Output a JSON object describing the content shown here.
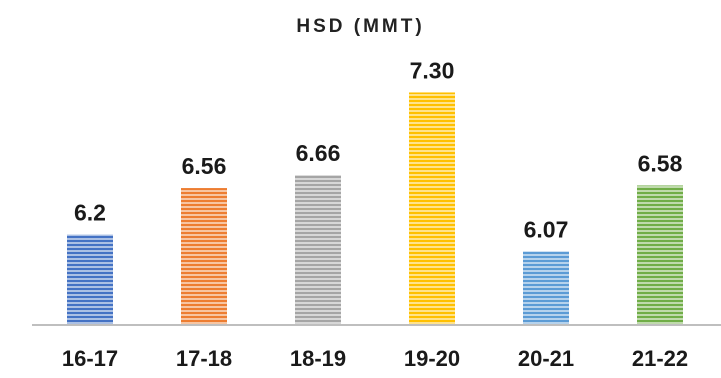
{
  "chart_data": {
    "type": "bar",
    "title": "HSD (MMT)",
    "categories": [
      "16-17",
      "17-18",
      "18-19",
      "19-20",
      "20-21",
      "21-22"
    ],
    "values": [
      6.2,
      6.56,
      6.66,
      7.3,
      6.07,
      6.58
    ],
    "value_labels": [
      "6.2",
      "6.56",
      "6.66",
      "7.30",
      "6.07",
      "6.58"
    ],
    "colors": [
      "#4472C4",
      "#ED7D31",
      "#A5A5A5",
      "#FFC000",
      "#5B9BD5",
      "#70AD47"
    ],
    "ylim": [
      5.5,
      7.35
    ],
    "bar_pattern": "horizontal-stripes",
    "grid": false,
    "legend": "none",
    "xlabel": "",
    "ylabel": ""
  }
}
